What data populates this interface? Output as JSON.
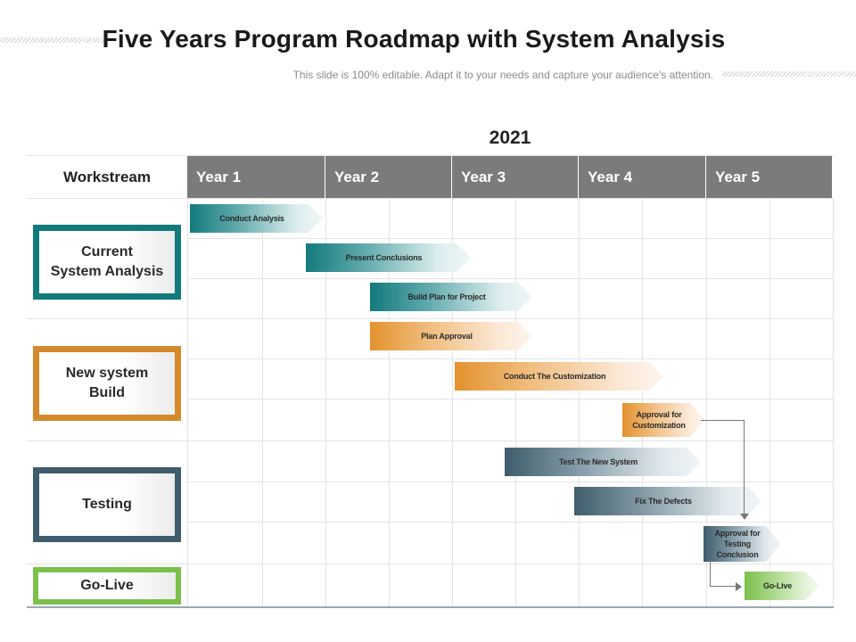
{
  "header": {
    "title": "Five Years Program Roadmap with System Analysis",
    "subtitle": "This slide is 100% editable. Adapt it to your needs and capture your audience’s attention."
  },
  "timeline": {
    "year_label": "2021",
    "workstream_header": "Workstream",
    "years": [
      "Year 1",
      "Year 2",
      "Year 3",
      "Year 4",
      "Year 5"
    ]
  },
  "workstreams": [
    {
      "label": "Current\nSystem Analysis",
      "color": "#137a7c"
    },
    {
      "label": "New system\nBuild",
      "color": "#d48a2c"
    },
    {
      "label": "Testing",
      "color": "#3f5d6c"
    },
    {
      "label": "Go-Live",
      "color": "#7cc04c"
    }
  ],
  "tasks": [
    {
      "label": "Conduct Analysis",
      "color": "teal"
    },
    {
      "label": "Present Conclusions",
      "color": "teal"
    },
    {
      "label": "Build Plan for Project",
      "color": "teal"
    },
    {
      "label": "Plan Approval",
      "color": "orange"
    },
    {
      "label": "Conduct The Customization",
      "color": "orange"
    },
    {
      "label": "Approval for Customization",
      "color": "orange"
    },
    {
      "label": "Test The New System",
      "color": "slate"
    },
    {
      "label": "Fix The Defects",
      "color": "slate"
    },
    {
      "label": "Approval for Testing Conclusion",
      "color": "slate"
    },
    {
      "label": "Go-Live",
      "color": "green"
    }
  ]
}
